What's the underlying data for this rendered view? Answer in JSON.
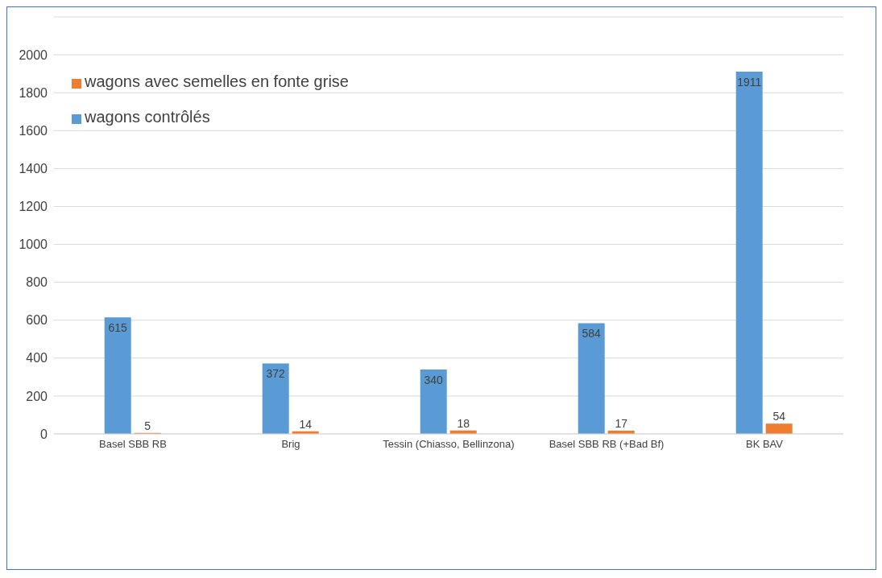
{
  "chart_data": {
    "type": "bar",
    "categories": [
      "Basel SBB RB",
      "Brig",
      "Tessin (Chiasso, Bellinzona)",
      "Basel SBB RB (+Bad Bf)",
      "BK BAV"
    ],
    "series": [
      {
        "name": "wagons contrôlés",
        "color": "#5b9bd5",
        "values": [
          615,
          372,
          340,
          584,
          1911
        ]
      },
      {
        "name": "wagons avec semelles en fonte grise",
        "color": "#ed7d31",
        "values": [
          5,
          14,
          18,
          17,
          54
        ]
      }
    ],
    "ylim": [
      0,
      2200
    ],
    "yticks": [
      0,
      200,
      400,
      600,
      800,
      1000,
      1200,
      1400,
      1600,
      1800,
      2000
    ],
    "grid": "y",
    "legend": "top left",
    "data_labels": true
  }
}
